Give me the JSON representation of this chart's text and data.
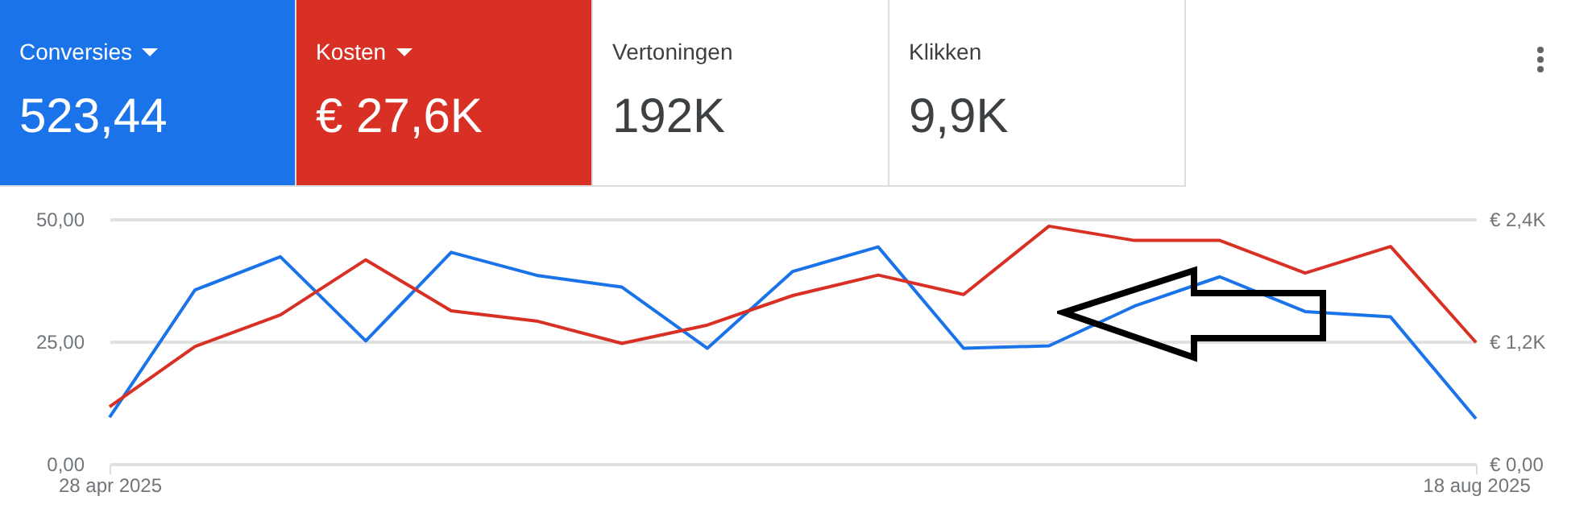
{
  "chart_data": [
    {
      "type": "other",
      "categories": [
        "Conversies",
        "Kosten",
        "Vertoningen",
        "Klikken"
      ],
      "value_labels": [
        "523,44",
        "€ 27,6K",
        "192K",
        "9,9K"
      ],
      "colors": [
        "#1a73e8",
        "#d93025",
        "#ffffff",
        "#ffffff"
      ]
    },
    {
      "type": "line",
      "x": [
        "2025-04-28",
        "2025-05-05",
        "2025-05-12",
        "2025-05-19",
        "2025-05-26",
        "2025-06-02",
        "2025-06-09",
        "2025-06-16",
        "2025-06-23",
        "2025-06-30",
        "2025-07-07",
        "2025-07-14",
        "2025-07-21",
        "2025-07-28",
        "2025-08-04",
        "2025-08-11",
        "2025-08-18"
      ],
      "series": [
        {
          "color": "#1a73e8",
          "values": [
            9.5,
            35.5,
            42.3,
            25.1,
            43.2,
            38.5,
            36.1,
            23.6,
            39.3,
            44.3,
            23.6,
            24.1,
            32.2,
            38.2,
            31.1,
            30.0,
            9.2
          ]
        },
        {
          "color": "#d93025",
          "axis": "y2",
          "values": [
            560,
            1150,
            1460,
            2000,
            1500,
            1400,
            1180,
            1360,
            1650,
            1850,
            1660,
            2330,
            2190,
            2190,
            1870,
            2130,
            1190
          ]
        }
      ],
      "xlim": [
        "2025-04-28",
        "2025-08-18"
      ],
      "xticks": [
        {
          "value": "2025-04-28",
          "label": "28 apr 2025"
        },
        {
          "value": "2025-08-18",
          "label": "18 aug 2025"
        }
      ],
      "ylim": [
        0,
        50
      ],
      "yticks": [
        {
          "value": 0,
          "label": "0,00"
        },
        {
          "value": 25,
          "label": "25,00"
        },
        {
          "value": 50,
          "label": "50,00"
        }
      ],
      "y2lim": [
        0,
        2400
      ],
      "y2ticks": [
        {
          "value": 0,
          "label": "€ 0,00"
        },
        {
          "value": 1200,
          "label": "€ 1,2K"
        },
        {
          "value": 2400,
          "label": "€ 2,4K"
        }
      ],
      "grid": "y"
    }
  ]
}
